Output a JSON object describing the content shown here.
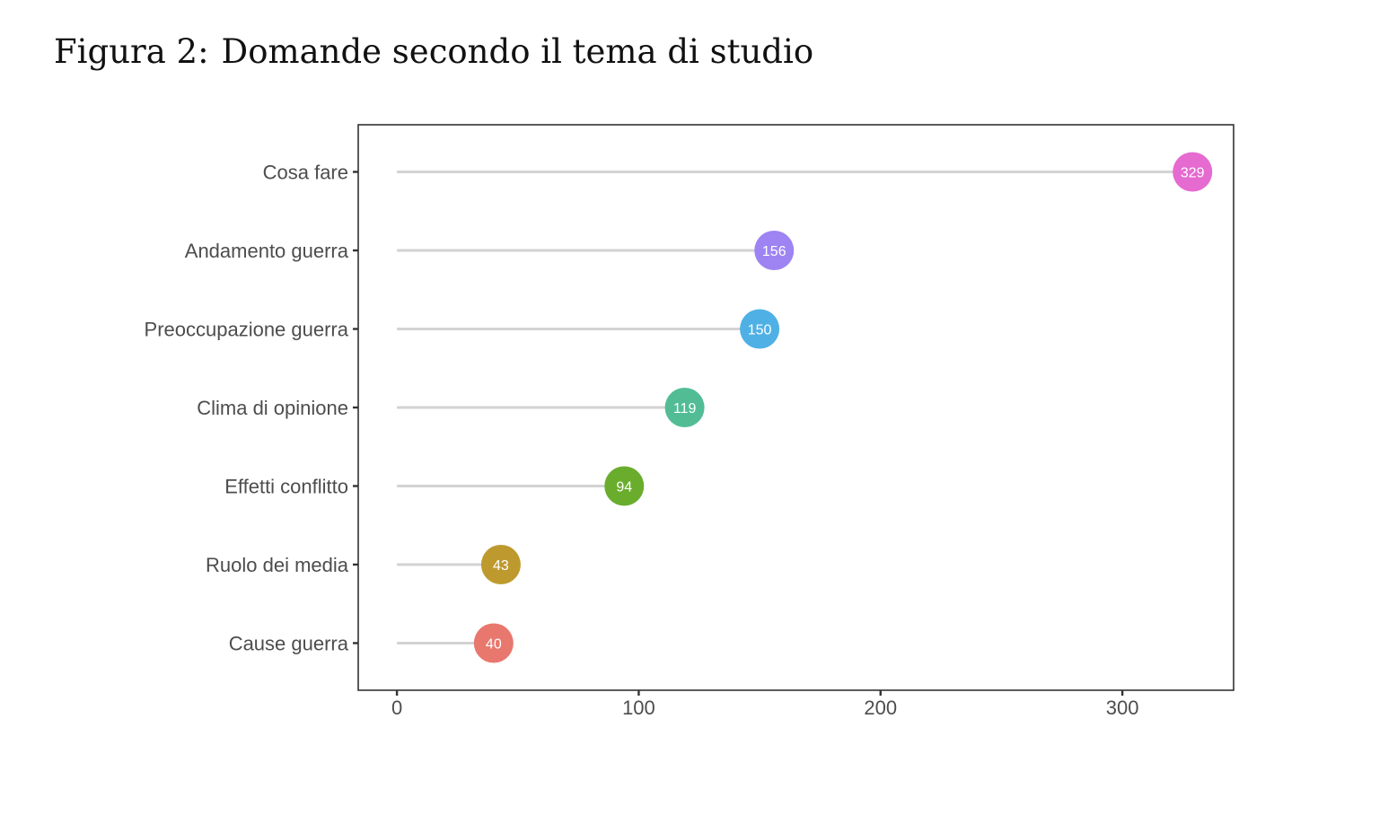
{
  "caption": {
    "number": "Figura 2:",
    "text": "Domande secondo il tema di studio"
  },
  "chart_data": {
    "type": "lollipop",
    "orientation": "horizontal",
    "title": "",
    "xlabel": "",
    "ylabel": "",
    "xlim": [
      -16,
      346
    ],
    "xticks": [
      0,
      100,
      200,
      300
    ],
    "grid": false,
    "legend": "none",
    "segment_color": "#d3d3d3",
    "categories": [
      "Cosa fare",
      "Andamento guerra",
      "Preoccupazione guerra",
      "Clima di opinione",
      "Effetti conflitto",
      "Ruolo dei media",
      "Cause guerra"
    ],
    "values": [
      329,
      156,
      150,
      119,
      94,
      43,
      40
    ],
    "colors": [
      "#E56BD0",
      "#9D84F2",
      "#4FB0E5",
      "#52BD95",
      "#6AAD2D",
      "#BE9A2E",
      "#E8776E"
    ]
  }
}
